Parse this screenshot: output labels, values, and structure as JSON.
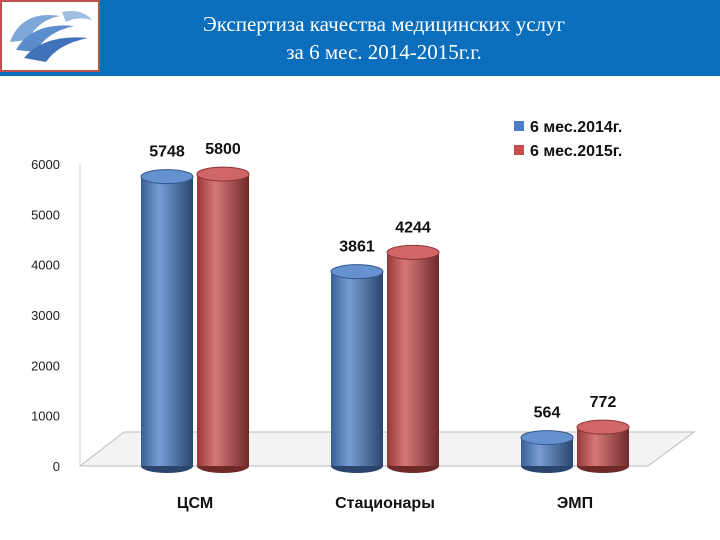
{
  "header": {
    "title_line1": "Экспертиза качества медицинских услуг",
    "title_line2": "за 6 мес. 2014-2015г.г.",
    "bg_color": "#0a6ebd",
    "logo_icon": "swirl-logo-icon"
  },
  "chart_data": {
    "type": "bar",
    "style": "3d-cylinder",
    "categories": [
      "ЦСМ",
      "Стационары",
      "ЭМП"
    ],
    "series": [
      {
        "name": "6 мес.2014г.",
        "values": [
          5748,
          3861,
          564
        ],
        "color": "#4a7ec7"
      },
      {
        "name": "6 мес.2015г.",
        "values": [
          5800,
          4244,
          772
        ],
        "color": "#c94b4b"
      }
    ],
    "data_labels": [
      [
        "5748",
        "3861",
        "564"
      ],
      [
        "5800",
        "4244",
        "772"
      ]
    ],
    "yticks": [
      "0",
      "1000",
      "2000",
      "3000",
      "4000",
      "5000",
      "6000"
    ],
    "ylim": [
      0,
      6000
    ],
    "title": "",
    "xlabel": "",
    "ylabel": "",
    "legend_position": "top-right",
    "grid": false
  }
}
